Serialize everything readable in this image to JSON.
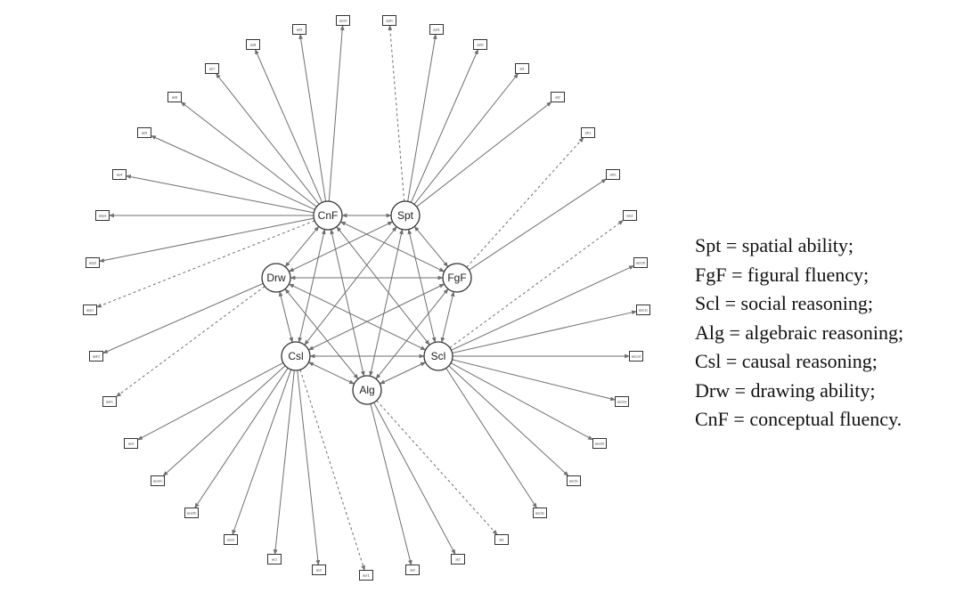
{
  "factors": [
    {
      "id": "CnF",
      "label": "CnF"
    },
    {
      "id": "Spt",
      "label": "Spt"
    },
    {
      "id": "Drw",
      "label": "Drw"
    },
    {
      "id": "FgF",
      "label": "FgF"
    },
    {
      "id": "Csl",
      "label": "Csl"
    },
    {
      "id": "Scl",
      "label": "Scl"
    },
    {
      "id": "Alg",
      "label": "Alg"
    }
  ],
  "factor_links": [
    [
      "CnF",
      "Spt"
    ],
    [
      "CnF",
      "Drw"
    ],
    [
      "CnF",
      "FgF"
    ],
    [
      "CnF",
      "Csl"
    ],
    [
      "CnF",
      "Scl"
    ],
    [
      "CnF",
      "Alg"
    ],
    [
      "Spt",
      "Drw"
    ],
    [
      "Spt",
      "FgF"
    ],
    [
      "Spt",
      "Csl"
    ],
    [
      "Spt",
      "Scl"
    ],
    [
      "Spt",
      "Alg"
    ],
    [
      "Drw",
      "FgF"
    ],
    [
      "Drw",
      "Csl"
    ],
    [
      "Drw",
      "Scl"
    ],
    [
      "Drw",
      "Alg"
    ],
    [
      "FgF",
      "Csl"
    ],
    [
      "FgF",
      "Scl"
    ],
    [
      "FgF",
      "Alg"
    ],
    [
      "Csl",
      "Scl"
    ],
    [
      "Csl",
      "Alg"
    ],
    [
      "Scl",
      "Alg"
    ]
  ],
  "indicators": [
    {
      "label": "asy3",
      "from": "CnF",
      "dashed": false
    },
    {
      "label": "asy2",
      "from": "CnF",
      "dashed": false
    },
    {
      "label": "asy1",
      "from": "CnF",
      "dashed": true
    },
    {
      "label": "adr2",
      "from": "Drw",
      "dashed": false
    },
    {
      "label": "adr1",
      "from": "Drw",
      "dashed": true
    },
    {
      "label": "as4",
      "from": "CnF",
      "dashed": false
    },
    {
      "label": "as5",
      "from": "CnF",
      "dashed": false
    },
    {
      "label": "as6",
      "from": "CnF",
      "dashed": false
    },
    {
      "label": "as7",
      "from": "CnF",
      "dashed": false
    },
    {
      "label": "as8",
      "from": "CnF",
      "dashed": false
    },
    {
      "label": "as9",
      "from": "CnF",
      "dashed": false
    },
    {
      "label": "as10",
      "from": "CnF",
      "dashed": false
    },
    {
      "label": "asth",
      "from": "Spt",
      "dashed": true
    },
    {
      "label": "ast1",
      "from": "Spt",
      "dashed": false
    },
    {
      "label": "ast2",
      "from": "Spt",
      "dashed": false
    },
    {
      "label": "at1",
      "from": "Spt",
      "dashed": false
    },
    {
      "label": "at2",
      "from": "Spt",
      "dashed": false
    },
    {
      "label": "afr1",
      "from": "FgF",
      "dashed": true
    },
    {
      "label": "afr2",
      "from": "FgF",
      "dashed": false
    },
    {
      "label": "ascr",
      "from": "Scl",
      "dashed": true
    },
    {
      "label": "asc1b",
      "from": "Scl",
      "dashed": false
    },
    {
      "label": "asc1c",
      "from": "Scl",
      "dashed": false
    },
    {
      "label": "asc1d",
      "from": "Scl",
      "dashed": false
    },
    {
      "label": "asc2a",
      "from": "Scl",
      "dashed": false
    },
    {
      "label": "asc2b",
      "from": "Scl",
      "dashed": false
    },
    {
      "label": "asc2c",
      "from": "Scl",
      "dashed": false
    },
    {
      "label": "asc3c",
      "from": "Scl",
      "dashed": false
    },
    {
      "label": "al1",
      "from": "Alg",
      "dashed": true
    },
    {
      "label": "al2",
      "from": "Alg",
      "dashed": false
    },
    {
      "label": "al3",
      "from": "Alg",
      "dashed": false
    },
    {
      "label": "acr1",
      "from": "Csl",
      "dashed": true
    },
    {
      "label": "ac2",
      "from": "Csl",
      "dashed": false
    },
    {
      "label": "ac1",
      "from": "Csl",
      "dashed": false
    },
    {
      "label": "aco2",
      "from": "Csl",
      "dashed": false
    },
    {
      "label": "aco2b",
      "from": "Csl",
      "dashed": false
    },
    {
      "label": "aco2c",
      "from": "Csl",
      "dashed": false
    },
    {
      "label": "ac3",
      "from": "Csl",
      "dashed": false
    }
  ],
  "legend": [
    "Spt = spatial ability;",
    "FgF = figural fluency;",
    "Scl = social reasoning;",
    "Alg = algebraic reasoning;",
    "Csl = causal reasoning;",
    "Drw = drawing ability;",
    "CnF = conceptual fluency."
  ],
  "colors": {
    "edge": "#6f6f6f",
    "node_fill": "#ffffff",
    "node_stroke": "#333333",
    "text": "#111111"
  }
}
